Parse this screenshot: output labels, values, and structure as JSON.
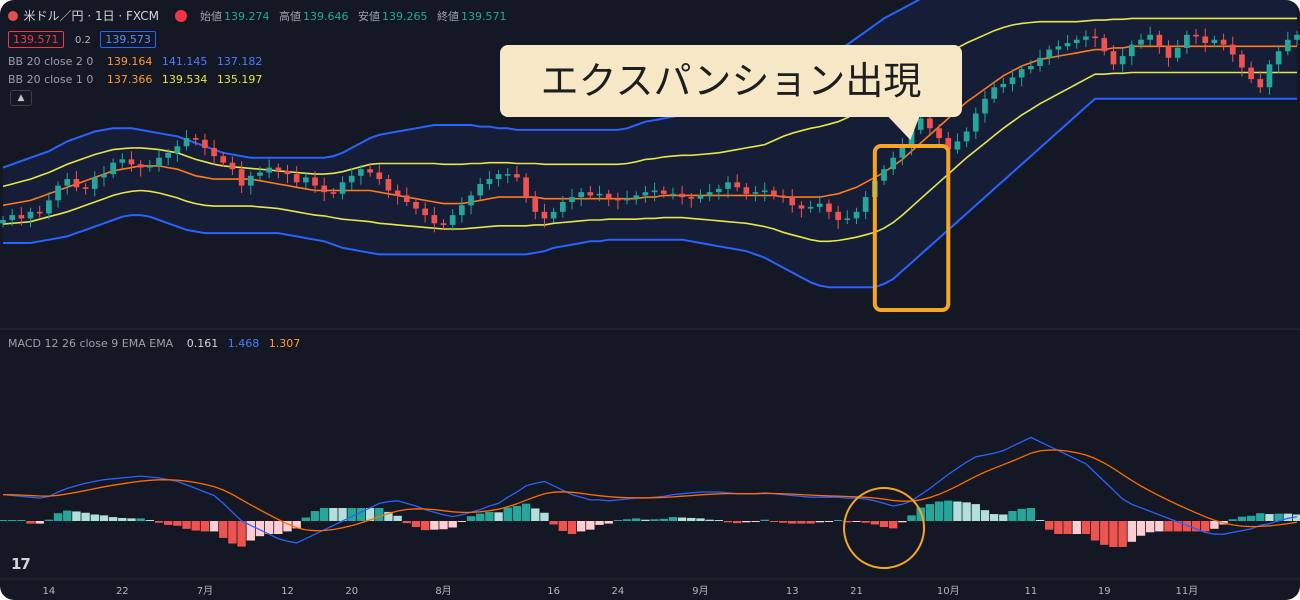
{
  "header": {
    "symbol": "米ドル／円 · 1日 · FXCM",
    "open_label": "始値",
    "open": "139.274",
    "high_label": "高値",
    "high": "139.646",
    "low_label": "安値",
    "low": "139.265",
    "close_label": "終値",
    "close": "139.571",
    "bid": "139.571",
    "spread": "0.2",
    "ask": "139.573"
  },
  "indicators": {
    "bb2": {
      "label": "BB 20 close 2 0",
      "basis": "139.164",
      "upper": "141.145",
      "lower": "137.182"
    },
    "bb1": {
      "label": "BB 20 close 1 0",
      "basis": "137.366",
      "upper": "139.534",
      "lower": "135.197"
    },
    "macd": {
      "label": "MACD 12 26 close 9 EMA EMA",
      "hist": "0.161",
      "macd": "1.468",
      "signal": "1.307"
    }
  },
  "annotation": {
    "callout_text": "エクスパンション出現"
  },
  "colors": {
    "background": "#141824",
    "up": "#26a69a",
    "down": "#ef5350",
    "bb2_band": "#2962ff",
    "bb1_band": "#e6e649",
    "basis": "#ff7a1a",
    "macd_line": "#2962ff",
    "signal_line": "#ff6d00",
    "highlight": "#f5a623"
  },
  "chart_data": [
    {
      "type": "candlestick",
      "title": "",
      "x_ticks": [
        "14",
        "22",
        "7月",
        "12",
        "20",
        "8月",
        "16",
        "24",
        "9月",
        "13",
        "21",
        "10月",
        "11",
        "19",
        "11月"
      ],
      "y_range": [
        132,
        150
      ],
      "close": [
        138.1,
        138.4,
        138.2,
        138.6,
        138.5,
        139.3,
        140.2,
        140.6,
        140.1,
        140.0,
        140.7,
        140.9,
        141.6,
        141.8,
        141.5,
        141.3,
        141.4,
        141.9,
        142.2,
        142.6,
        143.1,
        143.0,
        142.5,
        142.0,
        141.6,
        141.2,
        140.2,
        140.8,
        141.0,
        141.3,
        141.1,
        140.9,
        140.4,
        140.7,
        140.2,
        139.8,
        139.7,
        140.4,
        140.8,
        141.2,
        141.0,
        140.6,
        139.9,
        139.6,
        139.2,
        138.8,
        138.4,
        137.9,
        137.8,
        138.4,
        139.0,
        139.6,
        140.3,
        140.6,
        140.9,
        140.9,
        140.7,
        139.5,
        138.6,
        138.2,
        138.6,
        139.2,
        139.5,
        139.8,
        139.6,
        139.7,
        139.4,
        139.3,
        139.4,
        139.6,
        139.8,
        139.9,
        139.7,
        139.7,
        139.5,
        139.4,
        139.6,
        139.8,
        140.0,
        140.4,
        140.1,
        139.7,
        139.8,
        139.9,
        139.6,
        139.5,
        139.0,
        138.8,
        138.9,
        139.1,
        138.6,
        138.1,
        138.2,
        138.6,
        139.5,
        140.5,
        141.2,
        141.9,
        142.6,
        143.6,
        144.3,
        143.7,
        143.1,
        142.4,
        142.9,
        143.5,
        144.6,
        145.5,
        146.2,
        146.4,
        146.8,
        147.3,
        147.5,
        148.0,
        148.5,
        148.7,
        148.9,
        149.1,
        149.3,
        149.2,
        148.4,
        147.6,
        148.1,
        148.8,
        149.1,
        149.4,
        148.7,
        148.0,
        148.6,
        149.4,
        149.3,
        148.9,
        149.1,
        148.8,
        148.2,
        147.4,
        146.7,
        146.2,
        147.6,
        148.4,
        149.1,
        149.4
      ],
      "upper_band_2": [
        141.3,
        141.5,
        141.7,
        141.9,
        142.1,
        142.3,
        142.6,
        142.9,
        143.1,
        143.3,
        143.5,
        143.6,
        143.7,
        143.7,
        143.7,
        143.6,
        143.5,
        143.4,
        143.3,
        143.2,
        143.0,
        142.8,
        142.6,
        142.4,
        142.2,
        142.1,
        142.0,
        141.9,
        141.9,
        141.9,
        141.9,
        141.9,
        141.9,
        141.9,
        141.9,
        141.9,
        142.0,
        142.2,
        142.5,
        142.8,
        143.1,
        143.3,
        143.4,
        143.5,
        143.6,
        143.7,
        143.8,
        143.9,
        143.9,
        143.9,
        143.9,
        143.9,
        143.8,
        143.8,
        143.7,
        143.7,
        143.6,
        143.6,
        143.6,
        143.6,
        143.6,
        143.6,
        143.6,
        143.6,
        143.6,
        143.6,
        143.6,
        143.6,
        143.7,
        143.9,
        144.1,
        144.2,
        144.3,
        144.4,
        144.5,
        144.5,
        144.6,
        144.7,
        144.8,
        145.0,
        145.2,
        145.4,
        145.6,
        145.8,
        146.3,
        146.9,
        147.3,
        147.6,
        147.9,
        148.1,
        148.3,
        148.5,
        148.8,
        149.2,
        149.6,
        150.0,
        150.4,
        150.7,
        151.0,
        151.3,
        151.6,
        151.8,
        152.0,
        152.2,
        152.4,
        152.5,
        152.6,
        152.7,
        152.8,
        152.8,
        152.8,
        152.7,
        152.6,
        152.5,
        152.4,
        152.3,
        152.2,
        152.1,
        152.1,
        152.1,
        152.1,
        152.1,
        152.1,
        152.1,
        152.1,
        152.1,
        152.1,
        152.1,
        152.1,
        152.1,
        152.1,
        152.1,
        152.1,
        152.1,
        152.1,
        152.1,
        152.1,
        152.1,
        152.1,
        152.1,
        152.1,
        152.1
      ],
      "basis": [
        139.0,
        139.1,
        139.2,
        139.3,
        139.5,
        139.7,
        139.9,
        140.1,
        140.3,
        140.5,
        140.7,
        140.9,
        141.1,
        141.2,
        141.3,
        141.4,
        141.4,
        141.4,
        141.3,
        141.2,
        141.0,
        140.8,
        140.7,
        140.6,
        140.6,
        140.6,
        140.6,
        140.6,
        140.5,
        140.4,
        140.3,
        140.2,
        140.1,
        140.0,
        139.9,
        139.9,
        139.9,
        139.9,
        139.9,
        139.9,
        139.9,
        139.8,
        139.7,
        139.6,
        139.5,
        139.4,
        139.3,
        139.2,
        139.1,
        139.1,
        139.1,
        139.2,
        139.3,
        139.4,
        139.5,
        139.5,
        139.5,
        139.5,
        139.5,
        139.4,
        139.4,
        139.4,
        139.4,
        139.4,
        139.4,
        139.4,
        139.4,
        139.4,
        139.4,
        139.4,
        139.5,
        139.5,
        139.6,
        139.6,
        139.6,
        139.6,
        139.6,
        139.6,
        139.6,
        139.6,
        139.6,
        139.6,
        139.6,
        139.6,
        139.6,
        139.5,
        139.5,
        139.5,
        139.5,
        139.5,
        139.6,
        139.7,
        139.9,
        140.1,
        140.4,
        140.7,
        141.0,
        141.4,
        141.8,
        142.3,
        142.8,
        143.3,
        143.8,
        144.3,
        144.8,
        145.3,
        145.7,
        146.1,
        146.5,
        146.9,
        147.2,
        147.5,
        147.7,
        147.9,
        148.0,
        148.1,
        148.2,
        148.3,
        148.4,
        148.5,
        148.5,
        148.6,
        148.6,
        148.7,
        148.7,
        148.7,
        148.7,
        148.7,
        148.7,
        148.7,
        148.7,
        148.7,
        148.7,
        148.7,
        148.7,
        148.7,
        148.7,
        148.7,
        148.7,
        148.7,
        148.7,
        148.7
      ],
      "lower_band_2": [
        136.7,
        136.7,
        136.7,
        136.7,
        136.8,
        136.9,
        137.0,
        137.1,
        137.3,
        137.5,
        137.7,
        137.9,
        138.1,
        138.3,
        138.4,
        138.4,
        138.3,
        138.1,
        137.9,
        137.7,
        137.5,
        137.4,
        137.3,
        137.3,
        137.3,
        137.3,
        137.3,
        137.3,
        137.3,
        137.3,
        137.3,
        137.2,
        137.1,
        137.0,
        136.9,
        136.8,
        136.6,
        136.4,
        136.3,
        136.2,
        136.1,
        136.0,
        136.0,
        136.0,
        136.0,
        136.0,
        136.0,
        136.0,
        136.0,
        136.0,
        136.0,
        136.0,
        136.0,
        136.0,
        136.0,
        136.0,
        136.0,
        136.0,
        136.1,
        136.2,
        136.4,
        136.5,
        136.6,
        136.7,
        136.8,
        136.8,
        136.9,
        136.9,
        136.9,
        136.9,
        136.9,
        136.9,
        136.9,
        136.9,
        136.9,
        136.8,
        136.7,
        136.6,
        136.5,
        136.4,
        136.3,
        136.2,
        136.0,
        135.8,
        135.5,
        135.2,
        134.9,
        134.6,
        134.3,
        134.1,
        134.0,
        134.0,
        134.0,
        134.0,
        134.0,
        134.0,
        134.2,
        134.5,
        135.0,
        135.5,
        136.0,
        136.5,
        137.0,
        137.5,
        138.0,
        138.5,
        139.0,
        139.5,
        140.0,
        140.5,
        141.0,
        141.5,
        142.0,
        142.5,
        143.0,
        143.5,
        144.0,
        144.5,
        145.0,
        145.5,
        145.5,
        145.5,
        145.5,
        145.5,
        145.5,
        145.5,
        145.5,
        145.5,
        145.5,
        145.5,
        145.5,
        145.5,
        145.5,
        145.5,
        145.5,
        145.5,
        145.5,
        145.5,
        145.5,
        145.5,
        145.5,
        145.5
      ]
    },
    {
      "type": "bar",
      "title": "",
      "series": [
        {
          "name": "MACD 12 26 close 9 EMA EMA",
          "values": [
            0.05,
            0.04,
            0.03,
            0.02,
            0.01,
            0.03,
            0.08,
            0.12,
            0.15,
            0.18,
            0.2,
            0.22,
            0.23,
            0.24,
            0.25,
            0.26,
            0.25,
            0.24,
            0.22,
            0.2,
            0.16,
            0.12,
            0.08,
            0.04,
            -0.05,
            -0.15,
            -0.25,
            -0.3,
            -0.35,
            -0.4,
            -0.45,
            -0.48,
            -0.5,
            -0.45,
            -0.4,
            -0.35,
            -0.3,
            -0.25,
            -0.2,
            -0.15,
            -0.1,
            -0.05,
            -0.03,
            -0.02,
            -0.05,
            -0.08,
            -0.12,
            -0.15,
            -0.18,
            -0.2,
            -0.18,
            -0.15,
            -0.12,
            -0.08,
            -0.05,
            0.02,
            0.08,
            0.15,
            0.18,
            0.2,
            0.15,
            0.1,
            0.05,
            0.02,
            -0.01,
            -0.01,
            -0.02,
            -0.01,
            0.0,
            0.01,
            0.01,
            0.02,
            0.03,
            0.05,
            0.06,
            0.07,
            0.08,
            0.08,
            0.08,
            0.07,
            0.06,
            0.06,
            0.06,
            0.07,
            0.06,
            0.05,
            0.04,
            0.03,
            0.02,
            0.02,
            0.02,
            0.02,
            0.01,
            0.01,
            0.0,
            -0.02,
            -0.05,
            -0.08,
            -0.06,
            -0.02,
            0.05,
            0.12,
            0.2,
            0.28,
            0.35,
            0.42,
            0.48,
            0.5,
            0.52,
            0.55,
            0.6,
            0.65,
            0.7,
            0.65,
            0.6,
            0.55,
            0.5,
            0.45,
            0.4,
            0.3,
            0.2,
            0.1,
            0.0,
            -0.06,
            -0.1,
            -0.14,
            -0.18,
            -0.22,
            -0.26,
            -0.3,
            -0.34,
            -0.38,
            -0.4,
            -0.4,
            -0.38,
            -0.36,
            -0.34,
            -0.3,
            -0.28,
            -0.25,
            -0.22,
            -0.2
          ]
        }
      ]
    }
  ]
}
